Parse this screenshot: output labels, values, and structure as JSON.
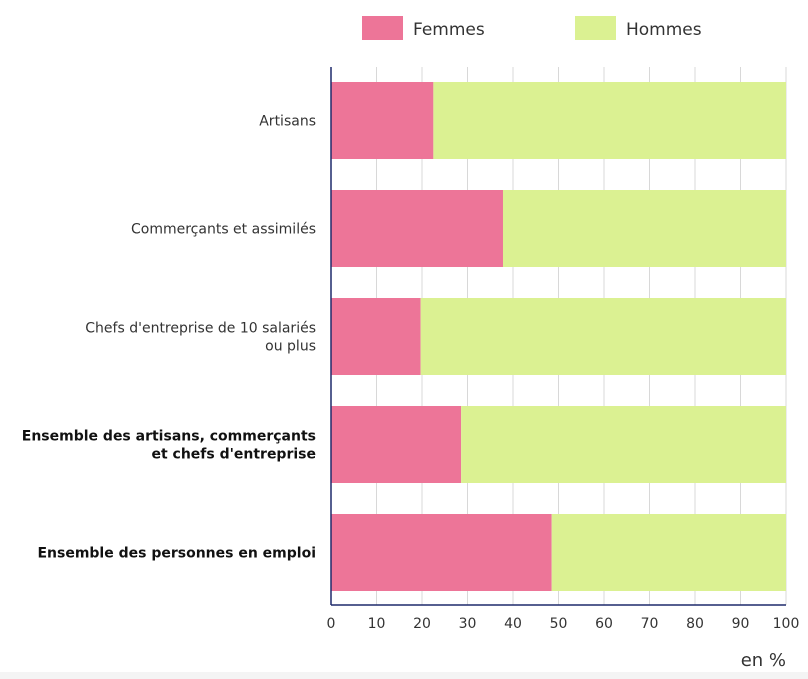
{
  "chart_data": {
    "type": "bar",
    "orientation": "horizontal",
    "stacked": true,
    "categories": [
      "Artisans",
      "Commerçants et assimilés",
      "Chefs d'entreprise de 10 salariés ou plus",
      "Ensemble des artisans, commerçants et chefs d'entreprise",
      "Ensemble des personnes en emploi"
    ],
    "category_lines": [
      [
        "Artisans"
      ],
      [
        "Commerçants et assimilés"
      ],
      [
        "Chefs d'entreprise de 10 salariés",
        "ou plus"
      ],
      [
        "Ensemble des artisans, commerçants",
        "et chefs d'entreprise"
      ],
      [
        "Ensemble des personnes en emploi"
      ]
    ],
    "bold_categories": [
      false,
      false,
      false,
      true,
      true
    ],
    "series": [
      {
        "name": "Femmes",
        "color": "#ed7598",
        "values": [
          22.5,
          37.8,
          19.7,
          28.6,
          48.5
        ]
      },
      {
        "name": "Hommes",
        "color": "#dbf192",
        "values": [
          77.5,
          62.2,
          80.3,
          71.4,
          51.5
        ]
      }
    ],
    "x_ticks": [
      "0",
      "10",
      "20",
      "30",
      "40",
      "50",
      "60",
      "70",
      "80",
      "90",
      "100"
    ],
    "xlim": [
      0,
      100
    ],
    "unit_label": "en %",
    "grid": true,
    "legend_position": "top"
  }
}
